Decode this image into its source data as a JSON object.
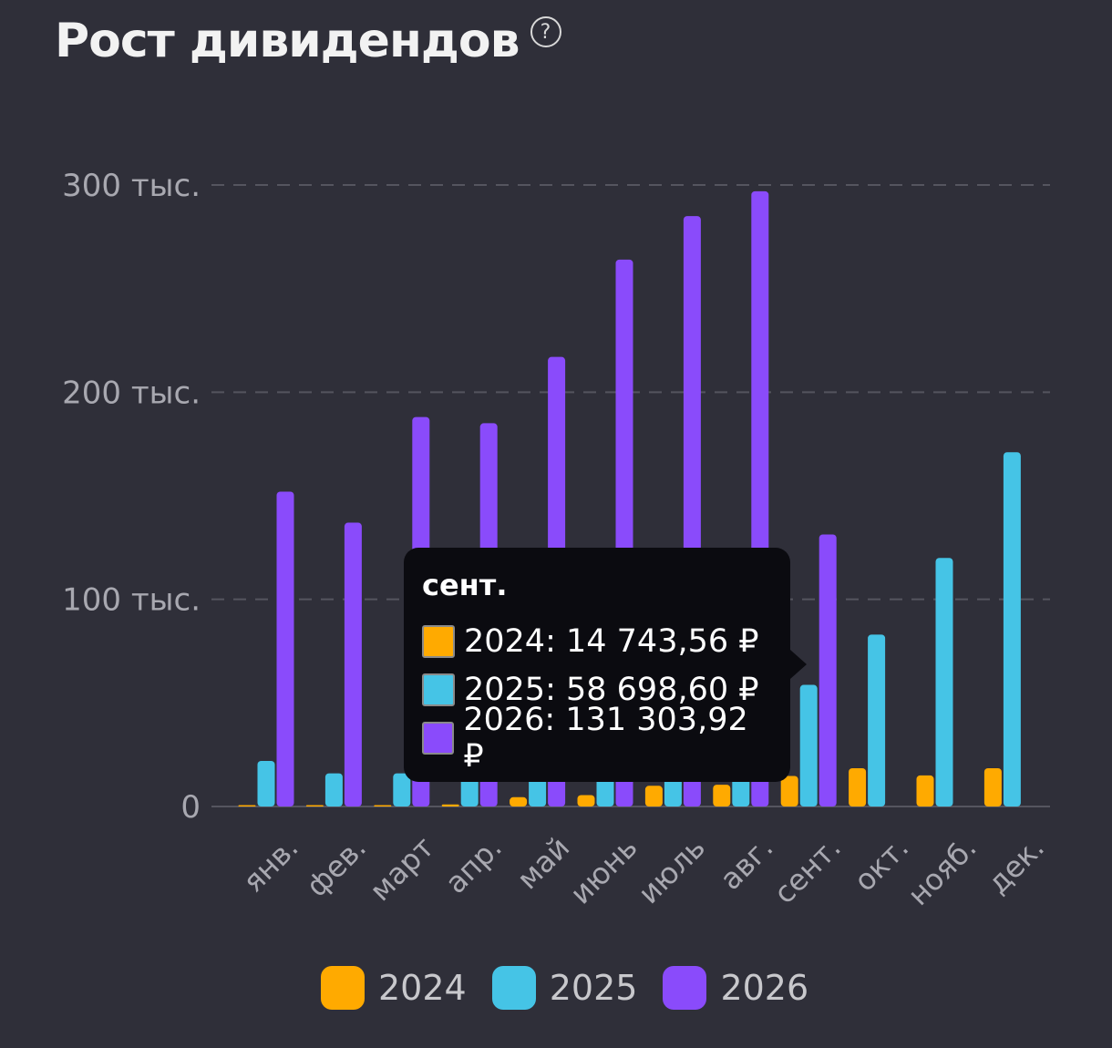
{
  "header": {
    "title": "Рост дивидендов",
    "help_icon": "question-circle-icon",
    "help_glyph": "?"
  },
  "chart_data": {
    "type": "bar",
    "title": "Рост дивидендов",
    "categories": [
      "янв.",
      "фев.",
      "март",
      "апр.",
      "май",
      "июнь",
      "июль",
      "авг.",
      "сент.",
      "окт.",
      "нояб.",
      "дек."
    ],
    "series": [
      {
        "name": "2024",
        "color": "#ffaa00",
        "values": [
          400,
          300,
          300,
          1000,
          4500,
          5500,
          10000,
          10500,
          14743.56,
          18500,
          15000,
          18500
        ]
      },
      {
        "name": "2025",
        "color": "#45c4e6",
        "values": [
          22000,
          16000,
          16000,
          22000,
          19000,
          20000,
          21000,
          32000,
          58698.6,
          83000,
          120000,
          171000
        ]
      },
      {
        "name": "2026",
        "color": "#8a4bfb",
        "values": [
          152000,
          137000,
          188000,
          185000,
          217000,
          264000,
          285000,
          297000,
          131303.92,
          null,
          null,
          null
        ]
      }
    ],
    "yticks": [
      0,
      100000,
      200000,
      300000
    ],
    "ytick_labels": [
      "0",
      "100 тыс.",
      "200 тыс.",
      "300 тыс."
    ],
    "ylim": [
      0,
      300000
    ],
    "grid": true,
    "legend": "bottom-center"
  },
  "tooltip": {
    "title": "сент.",
    "rows": [
      {
        "text": "2024: 14 743,56 ₽",
        "color": "#ffaa00"
      },
      {
        "text": "2025: 58 698,60 ₽",
        "color": "#45c4e6"
      },
      {
        "text": "2026: 131 303,92 ₽",
        "color": "#8a4bfb"
      }
    ]
  },
  "legend": {
    "items": [
      {
        "label": "2024",
        "color": "#ffaa00"
      },
      {
        "label": "2025",
        "color": "#45c4e6"
      },
      {
        "label": "2026",
        "color": "#8a4bfb"
      }
    ]
  }
}
